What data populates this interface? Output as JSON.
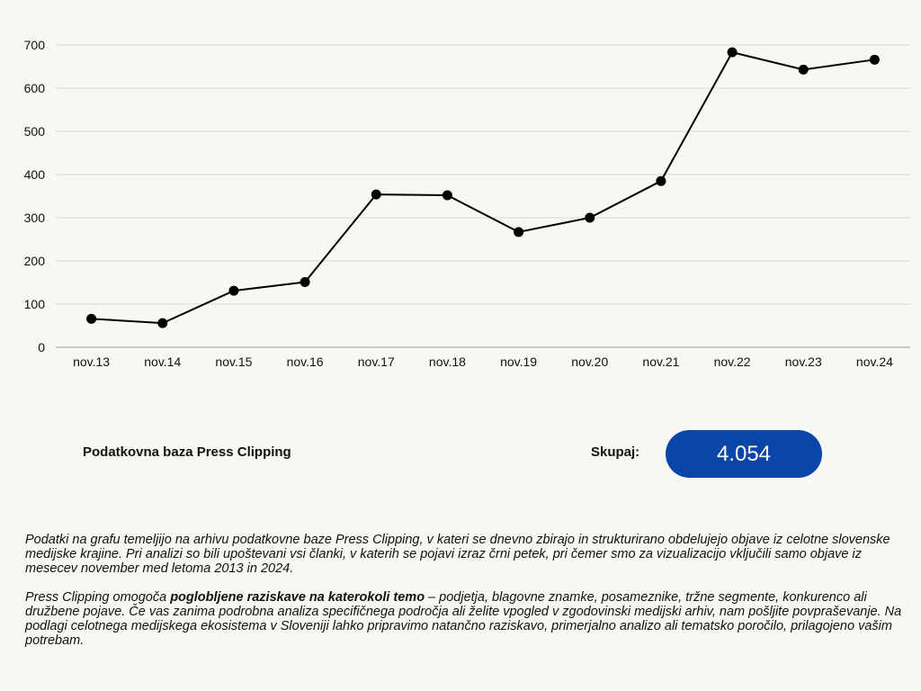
{
  "chart_data": {
    "type": "line",
    "categories": [
      "nov.13",
      "nov.14",
      "nov.15",
      "nov.16",
      "nov.17",
      "nov.18",
      "nov.19",
      "nov.20",
      "nov.21",
      "nov.22",
      "nov.23",
      "nov.24"
    ],
    "values": [
      66,
      56,
      131,
      151,
      354,
      352,
      267,
      300,
      385,
      683,
      643,
      666
    ],
    "yticks": [
      0,
      100,
      200,
      300,
      400,
      500,
      600,
      700
    ],
    "ylim": [
      0,
      700
    ],
    "grid": true,
    "title": "",
    "xlabel": "",
    "ylabel": ""
  },
  "summary": {
    "source_label": "Podatkovna baza Press Clipping",
    "total_label": "Skupaj:",
    "total_value": "4.054"
  },
  "footnotes": {
    "paragraph1": "Podatki na grafu temeljijo na arhivu podatkovne baze Press Clipping, v kateri se dnevno zbirajo in strukturirano obdelujejo objave iz celotne slovenske medijske krajine. Pri analizi so bili upoštevani vsi članki, v katerih se pojavi izraz črni petek, pri čemer smo za vizualizacijo vključili samo objave iz mesecev november med letoma 2013 in 2024.",
    "paragraph2_start": "Press Clipping omogoča ",
    "paragraph2_bold": "poglobljene raziskave na katerokoli temo",
    "paragraph2_end": " – podjetja, blagovne znamke, posameznike, tržne segmente, konkurenco ali družbene pojave. Če vas zanima podrobna analiza specifičnega področja ali želite vpogled v zgodovinski medijski arhiv, nam pošljite povpraševanje. Na podlagi celotnega medijskega ekosistema v Sloveniji lahko pripravimo natančno raziskavo, primerjalno analizo ali tematsko poročilo, prilagojeno vašim potrebam."
  },
  "colors": {
    "background": "#f9f7f3",
    "line": "#000000",
    "grid": "#d9d9d9",
    "axis": "#9a9a9a",
    "badge": "#0a45a8"
  }
}
